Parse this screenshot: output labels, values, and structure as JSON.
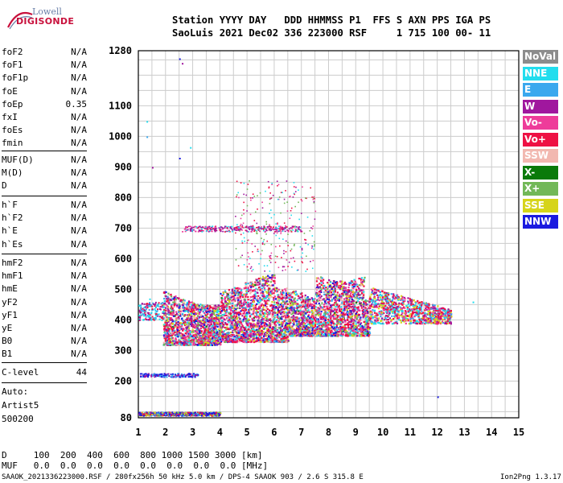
{
  "logo": {
    "brand": "Lowell",
    "product": "DIGISONDE"
  },
  "header": {
    "line1": "Station YYYY DAY   DDD HHMMSS P1  FFS S AXN PPS IGA PS",
    "line2": "SaoLuis 2021 Dec02 336 223000 RSF     1 715 100 00- 11"
  },
  "params_group1": [
    {
      "k": "foF2",
      "v": "N/A"
    },
    {
      "k": "foF1",
      "v": "N/A"
    },
    {
      "k": "foF1p",
      "v": "N/A"
    },
    {
      "k": "foE",
      "v": "N/A"
    },
    {
      "k": "foEp",
      "v": "0.35"
    },
    {
      "k": "fxI",
      "v": "N/A"
    },
    {
      "k": "foEs",
      "v": "N/A"
    },
    {
      "k": "fmin",
      "v": "N/A"
    }
  ],
  "params_group2": [
    {
      "k": "MUF(D)",
      "v": "N/A"
    },
    {
      "k": "M(D)",
      "v": "N/A"
    },
    {
      "k": "D",
      "v": "N/A"
    }
  ],
  "params_group3": [
    {
      "k": "h`F",
      "v": "N/A"
    },
    {
      "k": "h`F2",
      "v": "N/A"
    },
    {
      "k": "h`E",
      "v": "N/A"
    },
    {
      "k": "h`Es",
      "v": "N/A"
    }
  ],
  "params_group4": [
    {
      "k": "hmF2",
      "v": "N/A"
    },
    {
      "k": "hmF1",
      "v": "N/A"
    },
    {
      "k": "hmE",
      "v": "N/A"
    },
    {
      "k": "yF2",
      "v": "N/A"
    },
    {
      "k": "yF1",
      "v": "N/A"
    },
    {
      "k": "yE",
      "v": "N/A"
    },
    {
      "k": "B0",
      "v": "N/A"
    },
    {
      "k": "B1",
      "v": "N/A"
    }
  ],
  "clevel": {
    "k": "C-level",
    "v": "44"
  },
  "auto": {
    "l1": "Auto:",
    "l2": "Artist5",
    "l3": "500200"
  },
  "legend": [
    {
      "label": "NoVal",
      "color": "#8c8c8c"
    },
    {
      "label": "NNE",
      "color": "#22ddee"
    },
    {
      "label": "E",
      "color": "#3aa8ee"
    },
    {
      "label": "W",
      "color": "#a0179e"
    },
    {
      "label": "Vo-",
      "color": "#ee3c9a"
    },
    {
      "label": "Vo+",
      "color": "#ee1144"
    },
    {
      "label": "SSW",
      "color": "#f2b8b0"
    },
    {
      "label": "X-",
      "color": "#0a7a0a"
    },
    {
      "label": "X+",
      "color": "#72b858"
    },
    {
      "label": "SSE",
      "color": "#d6d41a"
    },
    {
      "label": "NNW",
      "color": "#1a1ae0"
    }
  ],
  "bottom": {
    "d_row": "D     100  200  400  600  800 1000 1500 3000 [km]",
    "muf_row": "MUF   0.0  0.0  0.0  0.0  0.0  0.0  0.0  0.0 [MHz]"
  },
  "footer": {
    "left": "SAAOK_2021336223000.RSF / 280fx256h 50 kHz 5.0 km / DPS-4 SAAOK 903 / 2.6 S 315.8 E",
    "right": "Ion2Png 1.3.17"
  },
  "chart_data": {
    "type": "scatter",
    "title": "",
    "xlabel": "",
    "ylabel": "",
    "xlim": [
      1,
      15
    ],
    "ylim": [
      80,
      1280
    ],
    "x_ticks": [
      1,
      2,
      3,
      4,
      5,
      6,
      7,
      8,
      9,
      10,
      11,
      12,
      13,
      14,
      15
    ],
    "y_ticks": [
      80,
      200,
      300,
      400,
      500,
      600,
      700,
      800,
      900,
      1000,
      1100,
      1280
    ],
    "grid": true,
    "clusters": [
      {
        "name": "F region main echo",
        "x": [
          1.9,
          9.5
        ],
        "y": [
          315,
          560
        ],
        "dominant": [
          "Vo+",
          "Vo-",
          "W"
        ]
      },
      {
        "name": "F region extension",
        "x": [
          9.5,
          12.5
        ],
        "y": [
          380,
          520
        ],
        "dominant": [
          "Vo+",
          "E",
          "NNE"
        ]
      },
      {
        "name": "upper trace",
        "x": [
          2.6,
          7.0
        ],
        "y": [
          680,
          720
        ],
        "dominant": [
          "W",
          "Vo-"
        ]
      },
      {
        "name": "E region",
        "x": [
          1.0,
          4.0
        ],
        "y": [
          90,
          100
        ],
        "dominant": [
          "NNW",
          "X+",
          "W"
        ]
      },
      {
        "name": "Es trace",
        "x": [
          1.0,
          3.2
        ],
        "y": [
          215,
          228
        ],
        "dominant": [
          "NNW",
          "W"
        ]
      }
    ]
  }
}
